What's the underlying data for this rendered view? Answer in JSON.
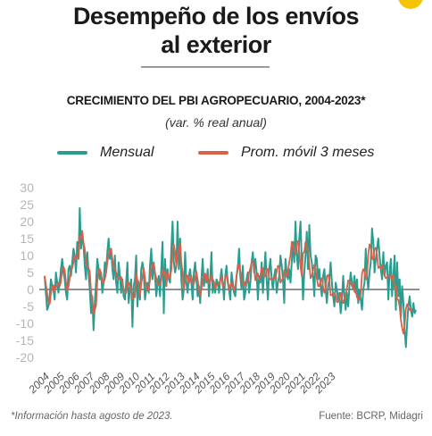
{
  "header": {
    "title_line1": "Desempeño de los envíos",
    "title_line2": "al exterior"
  },
  "chart_data": {
    "type": "line",
    "title": "CRECIMIENTO DEL PBI AGROPECUARIO, 2004-2023*",
    "subtitle": "(var. % real anual)",
    "xlabel": "",
    "ylabel": "",
    "ylim": [
      -20,
      30
    ],
    "yticks": [
      30,
      25,
      20,
      15,
      10,
      5,
      0,
      -5,
      -10,
      -15,
      -20
    ],
    "xticks": [
      "2004",
      "2005",
      "2006",
      "2007",
      "2008",
      "2009",
      "2010",
      "2011",
      "2012",
      "2013",
      "2014",
      "2015",
      "2016",
      "2017",
      "2018",
      "2019",
      "2020",
      "2021",
      "2022",
      "2023"
    ],
    "x_start": "2004-01",
    "x_end": "2023-08",
    "legend_position": "top",
    "grid": false,
    "series": [
      {
        "name": "Mensual",
        "color": "#2a9d8f",
        "values": [
          4,
          -1,
          -6,
          -5,
          -2,
          3,
          1,
          0,
          -3,
          5,
          2,
          -1,
          2,
          6,
          9,
          5,
          3,
          -1,
          -3,
          6,
          7,
          4,
          8,
          12,
          10,
          5,
          14,
          9,
          24,
          12,
          16,
          13,
          7,
          3,
          11,
          5,
          0,
          -7,
          -2,
          -12,
          -4,
          2,
          9,
          6,
          3,
          5,
          -1,
          2,
          8,
          5,
          11,
          15,
          9,
          12,
          6,
          3,
          10,
          2,
          -1,
          8,
          4,
          -1,
          3,
          -2,
          -3,
          2,
          8,
          -4,
          0,
          3,
          -11,
          1,
          3,
          10,
          -5,
          2,
          -3,
          6,
          8,
          5,
          -3,
          0,
          2,
          -1,
          7,
          12,
          3,
          8,
          4,
          -2,
          2,
          4,
          -2,
          6,
          14,
          -7,
          9,
          1,
          6,
          3,
          2,
          12,
          20,
          8,
          5,
          7,
          20,
          6,
          15,
          3,
          -3,
          0,
          11,
          2,
          -1,
          4,
          6,
          2,
          -3,
          5,
          8,
          3,
          -2,
          1,
          -4,
          3,
          9,
          1,
          4,
          2,
          6,
          -2,
          3,
          11,
          -1,
          2,
          -1,
          3,
          2,
          -1,
          3,
          6,
          2,
          -3,
          4,
          7,
          2,
          0,
          -3,
          5,
          2,
          -1,
          -2,
          4,
          6,
          12,
          4,
          0,
          7,
          -3,
          -1,
          3,
          5,
          -1,
          2,
          8,
          11,
          5,
          9,
          5,
          -3,
          4,
          2,
          8,
          -1,
          5,
          11,
          3,
          -3,
          6,
          9,
          3,
          0,
          4,
          6,
          -1,
          2,
          4,
          10,
          7,
          3,
          -4,
          9,
          5,
          3,
          6,
          2,
          8,
          14,
          8,
          20,
          10,
          6,
          15,
          20,
          8,
          -3,
          5,
          10,
          17,
          6,
          19,
          10,
          8,
          4,
          -2,
          10,
          9,
          3,
          6,
          1,
          -2,
          4,
          6,
          0,
          -4,
          1,
          3,
          8,
          2,
          -2,
          -5,
          2,
          0,
          -3,
          -1,
          -7,
          -3,
          4,
          -2,
          -6,
          -1,
          -5,
          1,
          5,
          2,
          0,
          4,
          -1,
          3,
          -4,
          0,
          -3,
          -6,
          0,
          2,
          12,
          4,
          0,
          5,
          8,
          18,
          14,
          5,
          9,
          12,
          15,
          10,
          6,
          3,
          11,
          4,
          7,
          8,
          -3,
          5,
          9,
          -2,
          4,
          10,
          -6,
          8,
          -2,
          3,
          -8,
          1,
          -4,
          -12,
          -17,
          -10,
          -5,
          -2,
          -6,
          -8,
          -4,
          -7,
          -6
        ]
      },
      {
        "name": "Prom. móvil 3 meses",
        "color": "#d9614b",
        "values": [
          4,
          1.5,
          -1,
          -4,
          -4.3,
          -1.3,
          0.7,
          1.3,
          -0.7,
          0.7,
          1.3,
          2,
          1,
          2.3,
          5.7,
          6.7,
          5.7,
          2.3,
          -0.3,
          0.7,
          3.3,
          5.7,
          6.3,
          8,
          10,
          9,
          9.7,
          9.3,
          15.7,
          15,
          17.3,
          13.7,
          12,
          7.7,
          7,
          6.3,
          5.3,
          -0.7,
          -3,
          -7,
          -6,
          -4.7,
          2.3,
          5.7,
          6,
          4.7,
          2.3,
          2,
          3,
          5,
          8,
          10.3,
          11.7,
          12,
          9,
          7,
          6.3,
          5,
          3.7,
          3,
          3.7,
          3.7,
          2,
          0,
          -0.7,
          -1,
          2.3,
          2,
          1.3,
          -0.3,
          -2.7,
          -2.3,
          -2.3,
          4.7,
          2.7,
          2.3,
          -2,
          1.7,
          3.7,
          6.3,
          3.3,
          0.7,
          -0.3,
          0.3,
          2.7,
          6,
          7.3,
          7.7,
          5,
          3.3,
          1.3,
          1.3,
          1.3,
          2.7,
          6,
          4.3,
          5.3,
          1,
          5.3,
          3.3,
          3.7,
          5.7,
          11.3,
          13.3,
          11,
          6.7,
          10.7,
          11,
          13.7,
          8,
          5,
          0,
          2.7,
          4.3,
          4,
          1.7,
          3,
          4,
          1.7,
          1.7,
          3.3,
          5.3,
          3,
          0,
          -1.7,
          0,
          2.7,
          4.3,
          4.7,
          2.3,
          4,
          1.7,
          2.3,
          4,
          3,
          2.3,
          0.3,
          1.3,
          1.3,
          1.7,
          2.7,
          3.7,
          1,
          1,
          3.3,
          4.3,
          3,
          -0.3,
          1.3,
          2,
          0.7,
          -0.3,
          1,
          4,
          7.3,
          7.3,
          5.3,
          3.7,
          1.3,
          1,
          2.3,
          2.3,
          2,
          5,
          6.3,
          8,
          8.3,
          6.3,
          2.7,
          3.7,
          4.7,
          3,
          4,
          6.3,
          6.3,
          3.7,
          4,
          6,
          6,
          3.3,
          3,
          3,
          3,
          3.7,
          3.3,
          5.3,
          7,
          6.7,
          2,
          2.7,
          3.3,
          5.7,
          4.7,
          3.7,
          5.3,
          8,
          10,
          14,
          12.7,
          12,
          10.3,
          13.7,
          14.3,
          11,
          6.7,
          4,
          10.7,
          11,
          14,
          11.7,
          12.3,
          7.3,
          3.3,
          4,
          5.7,
          7.3,
          6,
          3.3,
          1,
          1,
          2.7,
          3.3,
          0.7,
          -1,
          0,
          4,
          4.3,
          2.7,
          -1.7,
          -1.7,
          -1,
          -1.3,
          -1.7,
          -3.7,
          -3.7,
          -2,
          -1,
          -3,
          -4,
          -2.7,
          -1.7,
          0.3,
          2.7,
          2.3,
          2,
          1,
          2,
          -0.7,
          -0.3,
          -2.3,
          -3,
          -3,
          -1.3,
          4.7,
          6,
          5.3,
          3,
          4.3,
          10.3,
          13.3,
          12.3,
          9.3,
          8.7,
          12,
          12.3,
          10.3,
          6.3,
          6.7,
          6,
          7.3,
          6.3,
          4,
          3.3,
          3.7,
          4,
          3.7,
          4,
          2.7,
          4,
          0,
          1,
          -3,
          -3,
          -5,
          -9,
          -11.3,
          -13,
          -10.7,
          -5.7,
          -4.3,
          -5.3,
          -6,
          -6.3,
          -5.7
        ]
      }
    ]
  },
  "footer": {
    "note": "*Información hasta agosto de 2023.",
    "source": "Fuente: BCRP, Midagri"
  }
}
